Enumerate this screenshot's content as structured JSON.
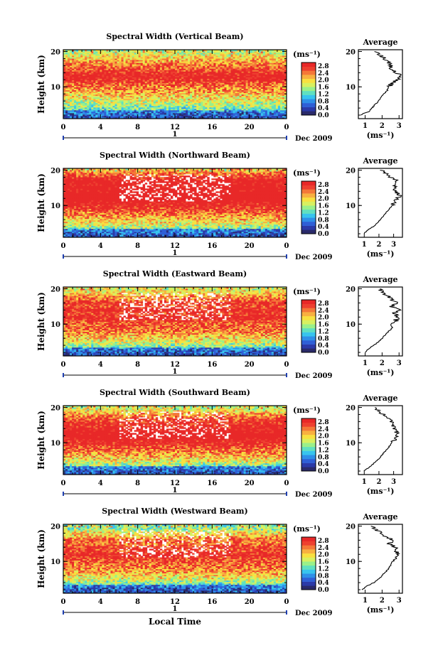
{
  "figure": {
    "xlabel": "Local Time",
    "day_marker": "1",
    "month_label": "Dec 2009",
    "colorbar_unit": "(ms⁻¹)",
    "colorbar_ticks": [
      "0.0",
      "0.4",
      "0.8",
      "1.2",
      "1.6",
      "2.0",
      "2.4",
      "2.8"
    ],
    "colorbar_range": [
      0.0,
      3.0
    ],
    "colorbar_colors": [
      "#2a2a6a",
      "#2b3aa8",
      "#2f5fd6",
      "#2f8fe8",
      "#38c4ee",
      "#60e0c0",
      "#9af08a",
      "#d8f060",
      "#f8e040",
      "#f8b040",
      "#f47838",
      "#ee4030",
      "#e82828"
    ],
    "avg_title": "Average",
    "avg_xlabel": "(ms⁻¹)",
    "height_ticks": [
      "10",
      "20"
    ],
    "time_ticks": [
      "0",
      "4",
      "8",
      "12",
      "16",
      "20",
      "0"
    ]
  },
  "chart_data": [
    {
      "type": "heatmap",
      "title": "Spectral Width (Vertical Beam)",
      "xlabel": "Local Time",
      "ylabel": "Height (km)",
      "x_range_hours": [
        0,
        24
      ],
      "ylim_km": [
        1,
        20.5
      ],
      "avg_ticks": [
        "1",
        "2",
        "3"
      ],
      "avg_xlim": [
        0.6,
        3.2
      ],
      "profile_h": [
        2,
        3,
        4,
        5,
        6,
        7,
        8,
        9,
        10,
        11,
        12,
        13,
        14,
        15,
        16,
        17,
        18,
        19,
        20
      ],
      "profile_v": [
        0.7,
        1.2,
        1.4,
        1.6,
        1.8,
        1.95,
        2.1,
        2.3,
        2.4,
        2.55,
        2.9,
        3.05,
        2.9,
        2.6,
        2.5,
        2.3,
        2.1,
        1.9,
        1.6
      ]
    },
    {
      "type": "heatmap",
      "title": "Spectral Width (Northward Beam)",
      "xlabel": "Local Time",
      "ylabel": "Height (km)",
      "x_range_hours": [
        0,
        24
      ],
      "ylim_km": [
        1,
        20.5
      ],
      "avg_ticks": [
        "1",
        "2",
        "3"
      ],
      "avg_xlim": [
        0.6,
        3.6
      ],
      "profile_h": [
        2,
        3,
        4,
        5,
        6,
        7,
        8,
        9,
        10,
        11,
        12,
        13,
        14,
        15,
        16,
        17,
        18,
        19,
        20
      ],
      "profile_v": [
        1.0,
        1.2,
        1.6,
        1.9,
        2.1,
        2.3,
        2.5,
        2.7,
        2.9,
        3.1,
        3.3,
        3.4,
        3.1,
        3.2,
        3.0,
        3.2,
        2.8,
        2.5,
        2.2
      ]
    },
    {
      "type": "heatmap",
      "title": "Spectral Width (Eastward Beam)",
      "xlabel": "Local Time",
      "ylabel": "Height (km)",
      "x_range_hours": [
        0,
        24
      ],
      "ylim_km": [
        1,
        20.5
      ],
      "avg_ticks": [
        "1",
        "2",
        "3"
      ],
      "avg_xlim": [
        0.6,
        3.2
      ],
      "profile_h": [
        2,
        3,
        4,
        5,
        6,
        7,
        8,
        9,
        10,
        11,
        12,
        13,
        14,
        15,
        16,
        17,
        18,
        19,
        20
      ],
      "profile_v": [
        1.0,
        1.2,
        1.5,
        1.8,
        2.0,
        2.2,
        2.4,
        2.6,
        2.5,
        2.8,
        3.0,
        2.7,
        3.0,
        2.6,
        2.9,
        2.5,
        2.3,
        2.0,
        1.8
      ]
    },
    {
      "type": "heatmap",
      "title": "Spectral Width (Southward Beam)",
      "xlabel": "Local Time",
      "ylabel": "Height (km)",
      "x_range_hours": [
        0,
        24
      ],
      "ylim_km": [
        1,
        20.5
      ],
      "avg_ticks": [
        "1",
        "2",
        "3"
      ],
      "avg_xlim": [
        0.6,
        3.6
      ],
      "profile_h": [
        2,
        3,
        4,
        5,
        6,
        7,
        8,
        9,
        10,
        11,
        12,
        13,
        14,
        15,
        16,
        17,
        18,
        19,
        20
      ],
      "profile_v": [
        1.0,
        1.3,
        1.6,
        1.9,
        2.1,
        2.3,
        2.5,
        2.7,
        2.9,
        3.1,
        3.3,
        3.2,
        3.0,
        2.9,
        2.8,
        2.6,
        2.3,
        2.0,
        1.6
      ]
    },
    {
      "type": "heatmap",
      "title": "Spectral Width (Westward Beam)",
      "xlabel": "Local Time",
      "ylabel": "Height (km)",
      "x_range_hours": [
        0,
        24
      ],
      "ylim_km": [
        1,
        20.5
      ],
      "avg_ticks": [
        "1",
        "2",
        "3"
      ],
      "avg_xlim": [
        0.6,
        3.2
      ],
      "profile_h": [
        2,
        3,
        4,
        5,
        6,
        7,
        8,
        9,
        10,
        11,
        12,
        13,
        14,
        15,
        16,
        17,
        18,
        19,
        20
      ],
      "profile_v": [
        0.8,
        1.1,
        1.5,
        1.8,
        2.0,
        2.2,
        2.4,
        2.5,
        2.6,
        2.8,
        3.0,
        2.7,
        2.8,
        2.4,
        2.6,
        2.2,
        2.0,
        1.6,
        1.4
      ]
    }
  ]
}
